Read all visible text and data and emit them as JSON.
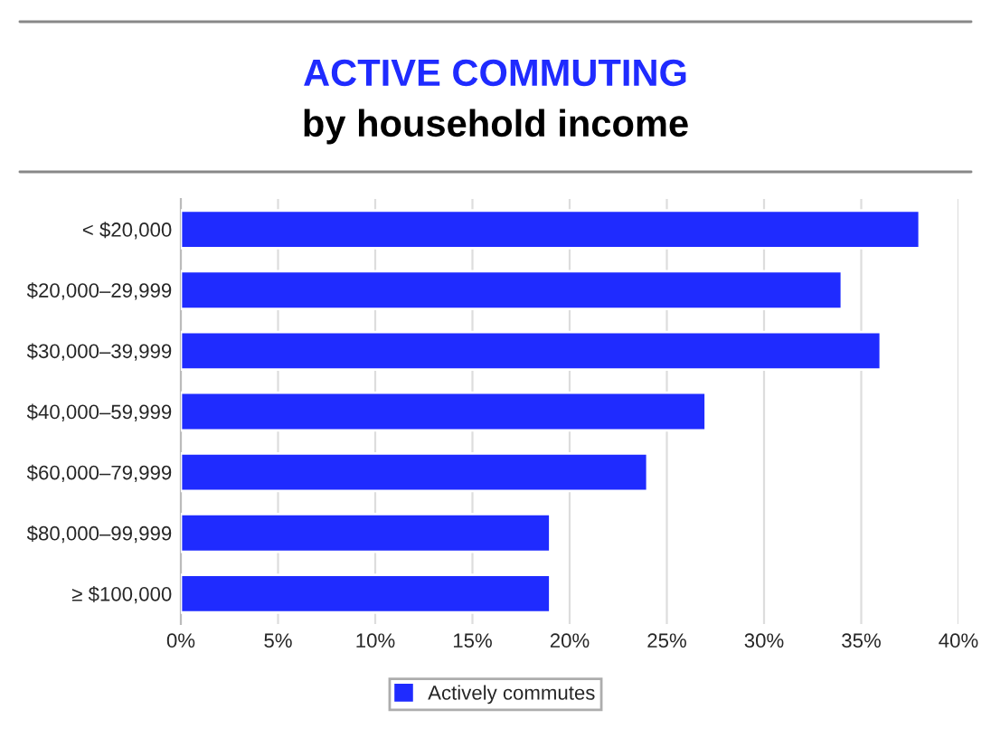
{
  "chart_data": {
    "type": "bar",
    "orientation": "horizontal",
    "title": "ACTIVE COMMUTING",
    "subtitle": "by household income",
    "categories": [
      "< $20,000",
      "$20,000–29,999",
      "$30,000–39,999",
      "$40,000–59,999",
      "$60,000–79,999",
      "$80,000–99,999",
      "≥ $100,000"
    ],
    "series": [
      {
        "name": "Actively commutes",
        "color": "#1f2bff",
        "values": [
          38,
          34,
          36,
          27,
          24,
          19,
          19
        ]
      }
    ],
    "xlim": [
      0,
      40
    ],
    "xticks": [
      {
        "value": 0,
        "label": "0%"
      },
      {
        "value": 5,
        "label": "5%"
      },
      {
        "value": 10,
        "label": "10%"
      },
      {
        "value": 15,
        "label": "15%"
      },
      {
        "value": 20,
        "label": "20%"
      },
      {
        "value": 25,
        "label": "25%"
      },
      {
        "value": 30,
        "label": "30%"
      },
      {
        "value": 35,
        "label": "35%"
      },
      {
        "value": 40,
        "label": "40%"
      }
    ],
    "grid": "x",
    "legend": "bottom"
  }
}
